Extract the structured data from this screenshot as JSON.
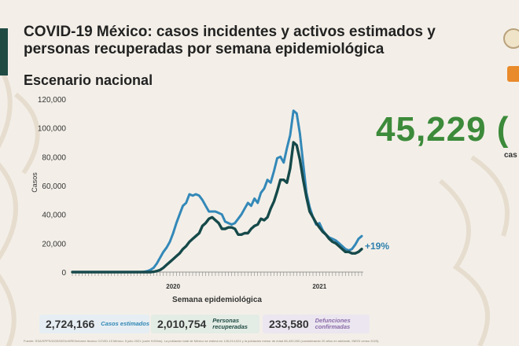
{
  "title": "COVID-19 México: casos incidentes y activos estimados y personas recuperadas por semana epidemiológica",
  "subtitle": "Escenario nacional",
  "highlight": {
    "value": "45,229 (",
    "label": "cas"
  },
  "percent_label": "+19%",
  "stats": [
    {
      "value": "2,724,166",
      "label": "Casos estimados"
    },
    {
      "value": "2,010,754",
      "label": "Personas recuperadas"
    },
    {
      "value": "233,580",
      "label": "Defunciones confirmadas"
    }
  ],
  "footnote": "Fuente: SSA/SPPS/DGE/DIE/InDRE/Informe técnico COVID-19 México. 5 julio 2021 (corte 9:00hrs). La población total de México se estima en 126,014,024 y la población menor de edad 85,420,000 (considerando 20 años en adelante, INEGI censo 2020).",
  "colors": {
    "estimados": "#3388b8",
    "activos": "#16494a",
    "accent_green": "#3c8a3a"
  },
  "chart_data": {
    "type": "line",
    "xlabel": "Semana epidemiológica",
    "ylabel": "Casos",
    "x_tick_labels": [
      "2020",
      "2021"
    ],
    "yticks": [
      "0",
      "20,000",
      "40,000",
      "60,000",
      "80,000",
      "100,000",
      "120,000"
    ],
    "ylim": [
      0,
      120000
    ],
    "grid": false,
    "series": [
      {
        "name": "Casos estimados",
        "values": [
          0,
          0,
          0,
          0,
          0,
          0,
          0,
          0,
          0,
          0,
          0,
          0,
          0,
          0,
          0,
          0,
          0,
          0,
          0,
          0,
          0,
          0,
          200,
          600,
          1500,
          3000,
          6000,
          10000,
          14000,
          17000,
          21000,
          27000,
          34000,
          40000,
          46000,
          48000,
          54000,
          53000,
          54000,
          53000,
          50000,
          46000,
          42000,
          42000,
          42000,
          41000,
          40000,
          35000,
          34000,
          33000,
          34000,
          37000,
          40000,
          44000,
          48000,
          46000,
          51000,
          48000,
          55000,
          58000,
          64000,
          62000,
          70000,
          79000,
          80000,
          76000,
          86000,
          95000,
          112000,
          110000,
          96000,
          75000,
          55000,
          45000,
          38000,
          33000,
          34000,
          29000,
          26000,
          24000,
          23000,
          22000,
          20000,
          18000,
          16000,
          15000,
          16000,
          19000,
          23000,
          25000
        ]
      },
      {
        "name": "Activos",
        "values": [
          0,
          0,
          0,
          0,
          0,
          0,
          0,
          0,
          0,
          0,
          0,
          0,
          0,
          0,
          0,
          0,
          0,
          0,
          0,
          0,
          0,
          0,
          0,
          0,
          0,
          200,
          700,
          1500,
          3000,
          5000,
          7000,
          9000,
          11000,
          13000,
          16000,
          18000,
          21000,
          23000,
          25000,
          27000,
          32000,
          34000,
          37000,
          38000,
          36000,
          34000,
          30000,
          30000,
          31000,
          31000,
          30000,
          26000,
          26000,
          27000,
          27000,
          30000,
          32000,
          33000,
          37000,
          36000,
          38000,
          44000,
          49000,
          56000,
          64000,
          64000,
          62000,
          72000,
          90000,
          88000,
          78000,
          64000,
          52000,
          42000,
          38000,
          34000,
          31000,
          28000,
          26000,
          23000,
          21000,
          20000,
          18000,
          16000,
          14000,
          14000,
          13000,
          13000,
          14000,
          16000
        ]
      }
    ]
  }
}
